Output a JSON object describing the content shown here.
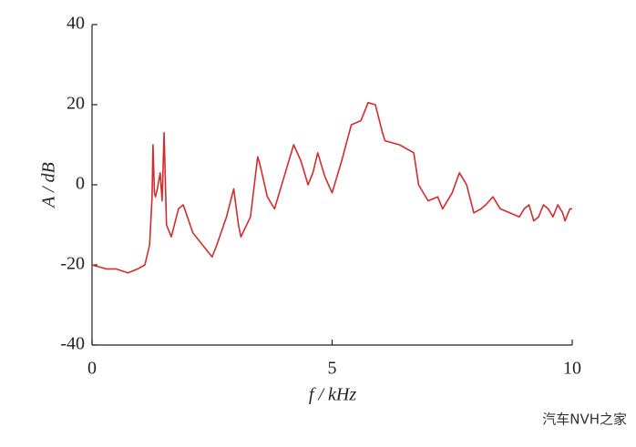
{
  "chart_data": {
    "type": "line",
    "ylabel": "A / dB",
    "xlabel": "f / kHz",
    "xlim": [
      0,
      10
    ],
    "xticks": [
      0,
      5,
      10
    ],
    "ylim": [
      -40,
      40
    ],
    "yticks": [
      -40,
      -20,
      0,
      20,
      40
    ],
    "series": [
      {
        "color": "#d42b2b",
        "x": [
          0,
          0.3,
          0.5,
          0.75,
          0.95,
          1.1,
          1.2,
          1.25,
          1.27,
          1.3,
          1.32,
          1.36,
          1.42,
          1.46,
          1.5,
          1.55,
          1.65,
          1.8,
          1.9,
          2.1,
          2.3,
          2.5,
          2.6,
          2.8,
          2.95,
          3.05,
          3.1,
          3.3,
          3.45,
          3.5,
          3.65,
          3.8,
          4.0,
          4.2,
          4.35,
          4.5,
          4.6,
          4.7,
          4.85,
          5.0,
          5.2,
          5.4,
          5.6,
          5.75,
          5.9,
          6.05,
          6.1,
          6.4,
          6.7,
          6.8,
          7.0,
          7.2,
          7.3,
          7.5,
          7.65,
          7.8,
          7.95,
          8.1,
          8.2,
          8.35,
          8.5,
          8.7,
          8.9,
          9.0,
          9.1,
          9.2,
          9.3,
          9.4,
          9.5,
          9.6,
          9.7,
          9.8,
          9.85,
          9.95,
          10
        ],
        "values": [
          -20,
          -21,
          -21,
          -22,
          -21,
          -20,
          -15,
          -3,
          10,
          -2,
          -3,
          -1,
          3,
          -4,
          13,
          -10,
          -13,
          -6,
          -5,
          -12,
          -15,
          -18,
          -15,
          -8,
          -1,
          -10,
          -13,
          -8,
          7,
          5,
          -3,
          -6,
          2,
          10,
          6,
          0,
          3,
          8,
          2,
          -2,
          6,
          15,
          16,
          20.5,
          20,
          13,
          11,
          10,
          8,
          0,
          -4,
          -3,
          -6,
          -2,
          3,
          0,
          -7,
          -6,
          -5,
          -3,
          -6,
          -7,
          -8,
          -6,
          -5,
          -9,
          -8,
          -5,
          -6,
          -8,
          -5,
          -7,
          -9,
          -6,
          -6
        ]
      }
    ]
  }
}
